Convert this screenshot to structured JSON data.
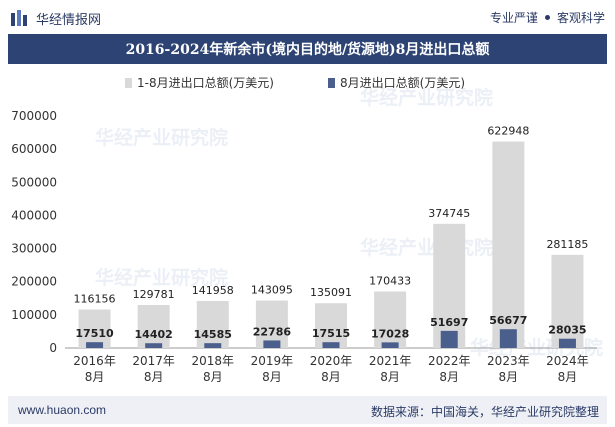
{
  "header": {
    "brand": "华经情报网",
    "slogan_left": "专业严谨",
    "slogan_right": "客观科学"
  },
  "footer": {
    "url": "www.huaon.com",
    "source": "数据来源：中国海关，华经产业研究院整理"
  },
  "watermark": "华经产业研究院",
  "colors": {
    "title_bg": "#2d4373",
    "series_total": "#d9d9d9",
    "series_august": "#4a5f8c"
  },
  "chart_data": {
    "type": "bar",
    "title": "2016-2024年新余市(境内目的地/货源地)8月进出口总额",
    "categories": [
      [
        "2016年",
        "8月"
      ],
      [
        "2017年",
        "8月"
      ],
      [
        "2018年",
        "8月"
      ],
      [
        "2019年",
        "8月"
      ],
      [
        "2020年",
        "8月"
      ],
      [
        "2021年",
        "8月"
      ],
      [
        "2022年",
        "8月"
      ],
      [
        "2023年",
        "8月"
      ],
      [
        "2024年",
        "8月"
      ]
    ],
    "series": [
      {
        "name": "1-8月进出口总额(万美元)",
        "values": [
          116156,
          129781,
          141958,
          143095,
          135091,
          170433,
          374745,
          622948,
          281185
        ]
      },
      {
        "name": "8月进出口总额(万美元)",
        "values": [
          17510,
          14402,
          14585,
          22786,
          17515,
          17028,
          51697,
          56677,
          28035
        ]
      }
    ],
    "ylim": [
      0,
      700000
    ],
    "yticks": [
      0,
      100000,
      200000,
      300000,
      400000,
      500000,
      600000,
      700000
    ],
    "xlabel": "",
    "ylabel": "",
    "legend": "top-center",
    "grid": false
  }
}
